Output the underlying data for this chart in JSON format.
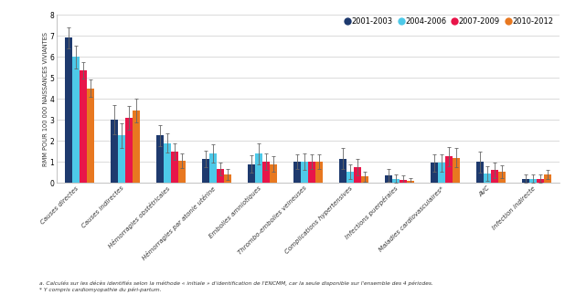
{
  "categories": [
    "Causes directes",
    "Causes indirectes",
    "Hémorragies obstétricales",
    "Hémorragies par atonie utérine",
    "Embolies amniotiques",
    "Thrombo-embolies veineuses",
    "Complications hypertensives",
    "Infections puerpérales",
    "Maladies cardiovasculaires*",
    "AVC",
    "Infection indirecte"
  ],
  "series": {
    "2001-2003": [
      6.9,
      3.0,
      2.25,
      1.15,
      0.9,
      1.0,
      1.15,
      0.35,
      0.95,
      1.0,
      0.2
    ],
    "2004-2006": [
      6.0,
      2.25,
      1.9,
      1.4,
      1.4,
      1.0,
      0.55,
      0.2,
      0.95,
      0.45,
      0.2
    ],
    "2007-2009": [
      5.35,
      3.1,
      1.5,
      0.65,
      1.0,
      1.0,
      0.75,
      0.15,
      1.25,
      0.6,
      0.2
    ],
    "2010-2012": [
      4.5,
      3.45,
      1.05,
      0.4,
      0.9,
      1.0,
      0.3,
      0.1,
      1.2,
      0.55,
      0.4
    ]
  },
  "errors": {
    "2001-2003": [
      0.5,
      0.7,
      0.5,
      0.4,
      0.4,
      0.35,
      0.5,
      0.3,
      0.4,
      0.5,
      0.2
    ],
    "2004-2006": [
      0.55,
      0.6,
      0.45,
      0.45,
      0.5,
      0.4,
      0.35,
      0.2,
      0.4,
      0.35,
      0.2
    ],
    "2007-2009": [
      0.4,
      0.55,
      0.4,
      0.3,
      0.4,
      0.35,
      0.4,
      0.2,
      0.45,
      0.35,
      0.2
    ],
    "2010-2012": [
      0.4,
      0.55,
      0.35,
      0.25,
      0.35,
      0.35,
      0.25,
      0.15,
      0.45,
      0.3,
      0.2
    ]
  },
  "colors": {
    "2001-2003": "#1e3a6e",
    "2004-2006": "#4ec9e8",
    "2007-2009": "#e8154a",
    "2010-2012": "#e87820"
  },
  "legend_labels": [
    "2001-2003",
    "2004-2006",
    "2007-2009",
    "2010-2012"
  ],
  "ylabel": "RMM POUR 100 000 NAISSANCES VIVIANTES",
  "ylim": [
    0,
    8
  ],
  "yticks": [
    0,
    1,
    2,
    3,
    4,
    5,
    6,
    7,
    8
  ],
  "footnote_a": "a. Calculés sur les décès identifiés selon la méthode « initiale » d'identification de l'ENCMM, car la seule disponible sur l'ensemble des 4 périodes.",
  "footnote_b": "* Y compris cardiomyopathie du péri-partum.",
  "background_color": "#ffffff",
  "grid_color": "#cccccc"
}
